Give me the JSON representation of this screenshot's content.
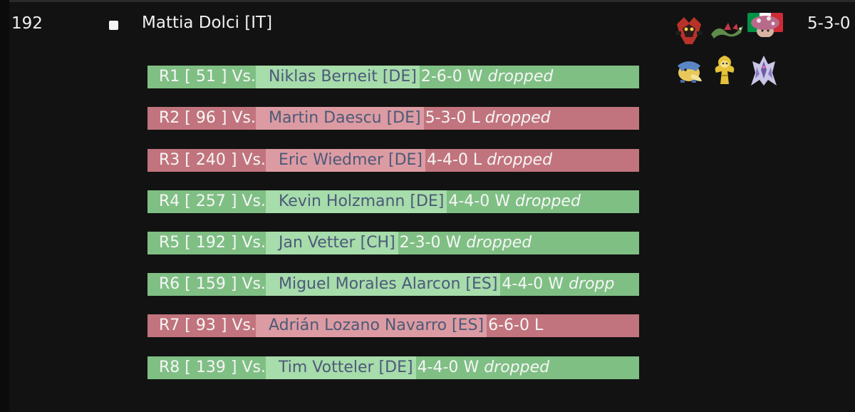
{
  "player": {
    "rank": "192",
    "name": "Mattia Dolci [IT]",
    "record": "5-3-0",
    "flag_colors": [
      "#009246",
      "#ffffff",
      "#ce2b37"
    ]
  },
  "team": [
    {
      "icon": "red-dark-pokemon-icon",
      "color": "#b8322a"
    },
    {
      "icon": "green-serpent-pokemon-icon",
      "color": "#5e8c4a"
    },
    {
      "icon": "pink-mushroom-pokemon-icon",
      "color": "#b86a8a"
    },
    {
      "icon": "blue-yellow-bird-pokemon-icon",
      "color": "#e9c85a"
    },
    {
      "icon": "yellow-plant-pokemon-icon",
      "color": "#e5c23a"
    },
    {
      "icon": "white-purple-dragon-pokemon-icon",
      "color": "#c9c6e6"
    }
  ],
  "rounds": [
    {
      "round": "R1",
      "table": "[ 51 ]",
      "vs": "Vs.",
      "opponent": "Niklas Berneit [DE]",
      "opp_record": "2-6-0",
      "result": "W",
      "note": "dropped",
      "outcome": "win"
    },
    {
      "round": "R2",
      "table": "[ 96 ]",
      "vs": "Vs.",
      "opponent": "Martin Daescu [DE]",
      "opp_record": "5-3-0",
      "result": "L",
      "note": "dropped",
      "outcome": "loss"
    },
    {
      "round": "R3",
      "table": "[ 240 ]",
      "vs": "Vs.",
      "opponent": "Eric Wiedmer [DE]",
      "opp_record": "4-4-0",
      "result": "L",
      "note": "dropped",
      "outcome": "loss"
    },
    {
      "round": "R4",
      "table": "[ 257 ]",
      "vs": "Vs.",
      "opponent": "Kevin Holzmann [DE]",
      "opp_record": "4-4-0",
      "result": "W",
      "note": "dropped",
      "outcome": "win"
    },
    {
      "round": "R5",
      "table": "[ 192 ]",
      "vs": "Vs.",
      "opponent": "Jan Vetter [CH]",
      "opp_record": "2-3-0",
      "result": "W",
      "note": "dropped",
      "outcome": "win"
    },
    {
      "round": "R6",
      "table": "[ 159 ]",
      "vs": "Vs.",
      "opponent": "Miguel Morales Alarcon [ES]",
      "opp_record": "4-4-0",
      "result": "W",
      "note": "dropp",
      "outcome": "win"
    },
    {
      "round": "R7",
      "table": "[ 93 ]",
      "vs": "Vs.",
      "opponent": "Adrián Lozano Navarro [ES]",
      "opp_record": "6-6-0",
      "result": "L",
      "note": "",
      "outcome": "loss"
    },
    {
      "round": "R8",
      "table": "[ 139 ]",
      "vs": "Vs.",
      "opponent": "Tim Votteler [DE]",
      "opp_record": "4-4-0",
      "result": "W",
      "note": "dropped",
      "outcome": "win"
    }
  ]
}
